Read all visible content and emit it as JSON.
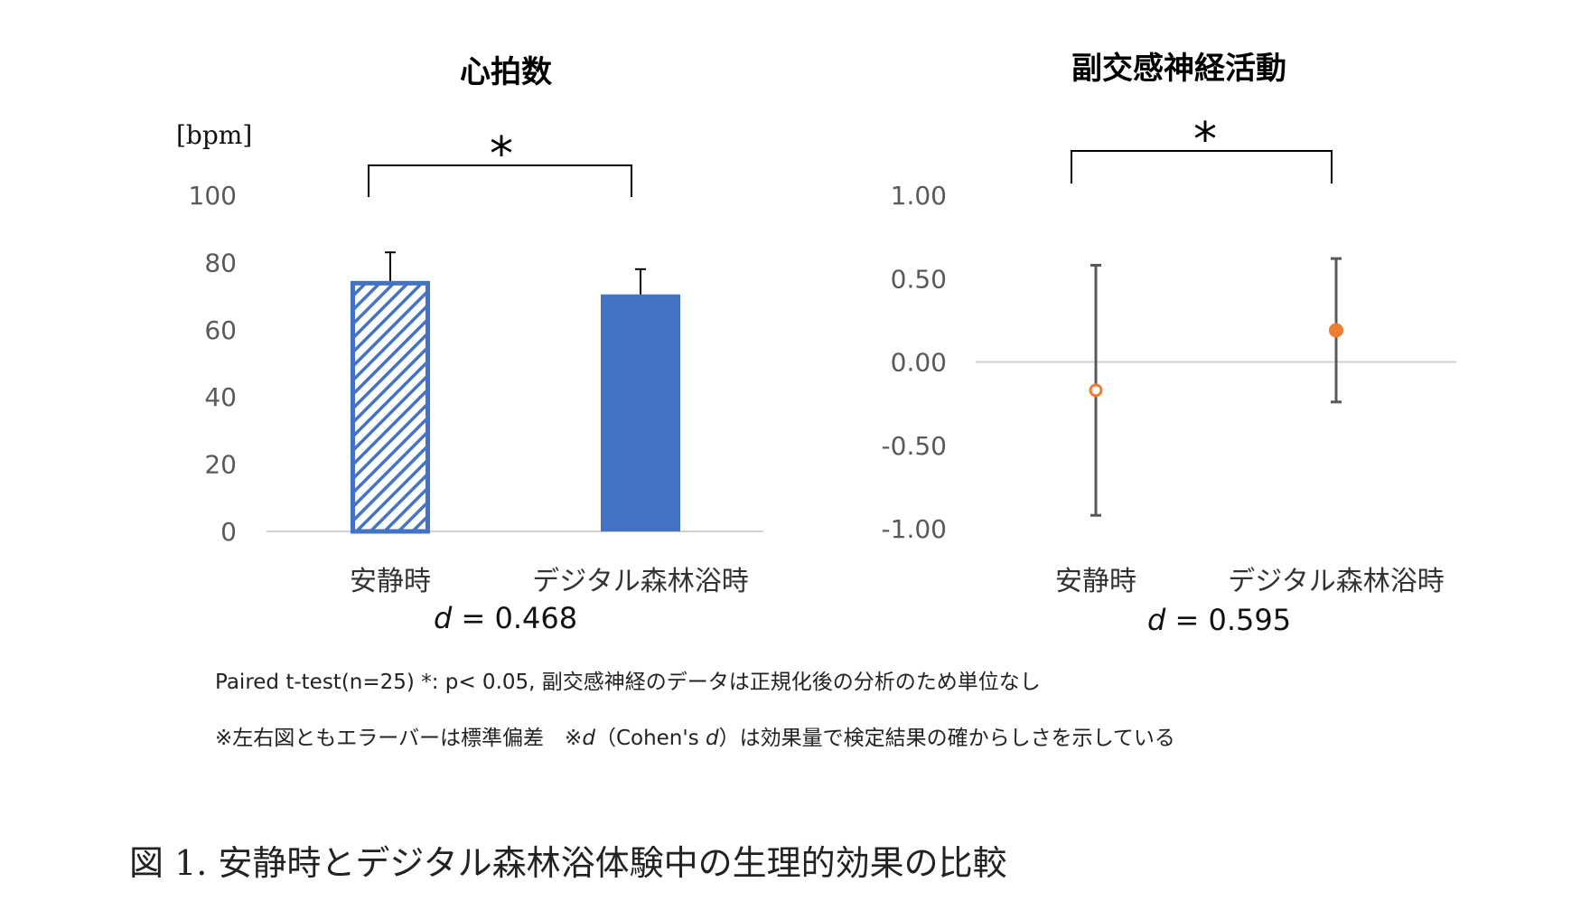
{
  "chart_data": [
    {
      "type": "bar",
      "title": "心拍数",
      "unit_label": "[bpm]",
      "categories": [
        "安静時",
        "デジタル森林浴時"
      ],
      "values": [
        74.5,
        70.5
      ],
      "error": [
        8.5,
        7.5
      ],
      "ylim": [
        0,
        100
      ],
      "yticks": [
        "0",
        "20",
        "40",
        "60",
        "80",
        "100"
      ],
      "bar_styles": [
        "hatched",
        "solid"
      ],
      "significance": "*",
      "effect_size_label": "d",
      "effect_size_value": "= 0.468",
      "color": "#4472c4",
      "grid": false
    },
    {
      "type": "scatter",
      "title": "副交感神経活動",
      "categories": [
        "安静時",
        "デジタル森林浴時"
      ],
      "values": [
        -0.17,
        0.19
      ],
      "error": [
        0.75,
        0.43
      ],
      "ylim": [
        -1.0,
        1.0
      ],
      "yticks": [
        "-1.00",
        "-0.50",
        "0.00",
        "0.50",
        "1.00"
      ],
      "marker_styles": [
        "hollow",
        "filled"
      ],
      "significance": "*",
      "effect_size_label": "d",
      "effect_size_value": "= 0.595",
      "color": "#ed7d31",
      "grid": false
    }
  ],
  "notes": {
    "line1": "Paired t-test(n=25) *: p< 0.05, 副交感神経のデータは正規化後の分析のため単位なし",
    "line2_a": "※左右図ともエラーバーは標準偏差　※",
    "line2_d1": "d",
    "line2_b": "（Cohen's ",
    "line2_d2": "d",
    "line2_c": "）は効果量で検定結果の確からしさを示している"
  },
  "caption": "図 1.  安静時とデジタル森林浴体験中の生理的効果の比較"
}
